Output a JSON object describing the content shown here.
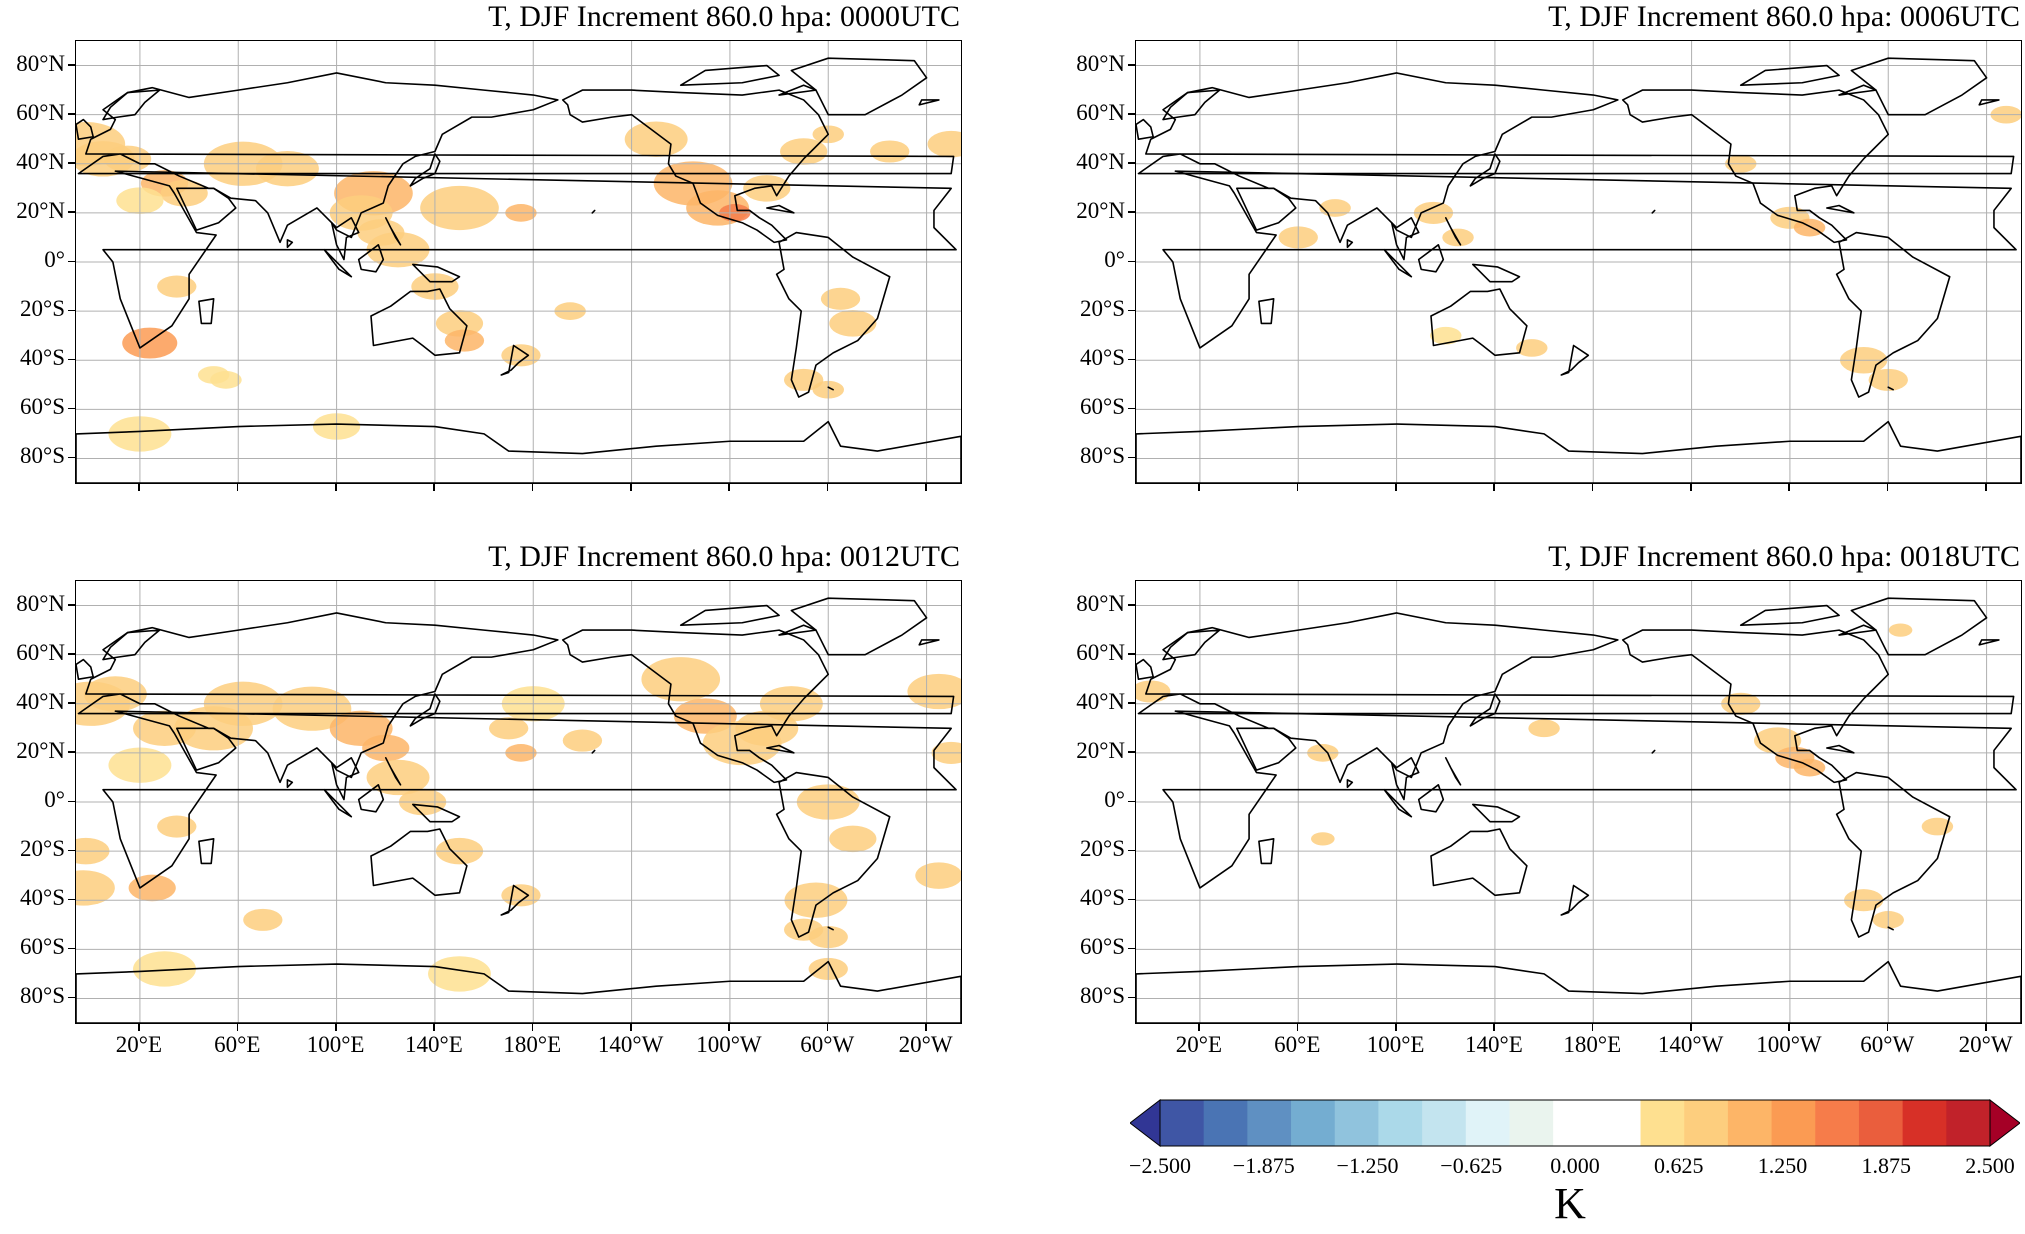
{
  "panels": [
    {
      "title": "T, DJF Increment 860.0 hpa: 0000UTC",
      "id": "0000"
    },
    {
      "title": "T, DJF Increment 860.0 hpa: 0006UTC",
      "id": "0006"
    },
    {
      "title": "T, DJF Increment 860.0 hpa: 0012UTC",
      "id": "0012"
    },
    {
      "title": "T, DJF Increment 860.0 hpa: 0018UTC",
      "id": "0018"
    }
  ],
  "lat_labels": [
    "80°N",
    "60°N",
    "40°N",
    "20°N",
    "0°",
    "20°S",
    "40°S",
    "60°S",
    "80°S"
  ],
  "lon_labels": [
    "20°E",
    "60°E",
    "100°E",
    "140°E",
    "180°E",
    "140°W",
    "100°W",
    "60°W",
    "20°W"
  ],
  "colorbar": {
    "unit": "K",
    "tick_labels": [
      "−2.500",
      "−1.875",
      "−1.250",
      "−0.625",
      "0.000",
      "0.625",
      "1.250",
      "1.875",
      "2.500"
    ],
    "colors": [
      "#313695",
      "#3f56a5",
      "#4a74b4",
      "#5f90c2",
      "#74add1",
      "#90c3dd",
      "#abd9e9",
      "#c3e4ef",
      "#e0f3f8",
      "#eaf4ee",
      "#ffffff",
      "#ffffff",
      "#fee090",
      "#fdce7e",
      "#fdb567",
      "#fb9b53",
      "#f67c4a",
      "#ea5e3d",
      "#d73027",
      "#c1222a",
      "#a50026"
    ],
    "range": [
      -2.5,
      2.5
    ]
  }
}
